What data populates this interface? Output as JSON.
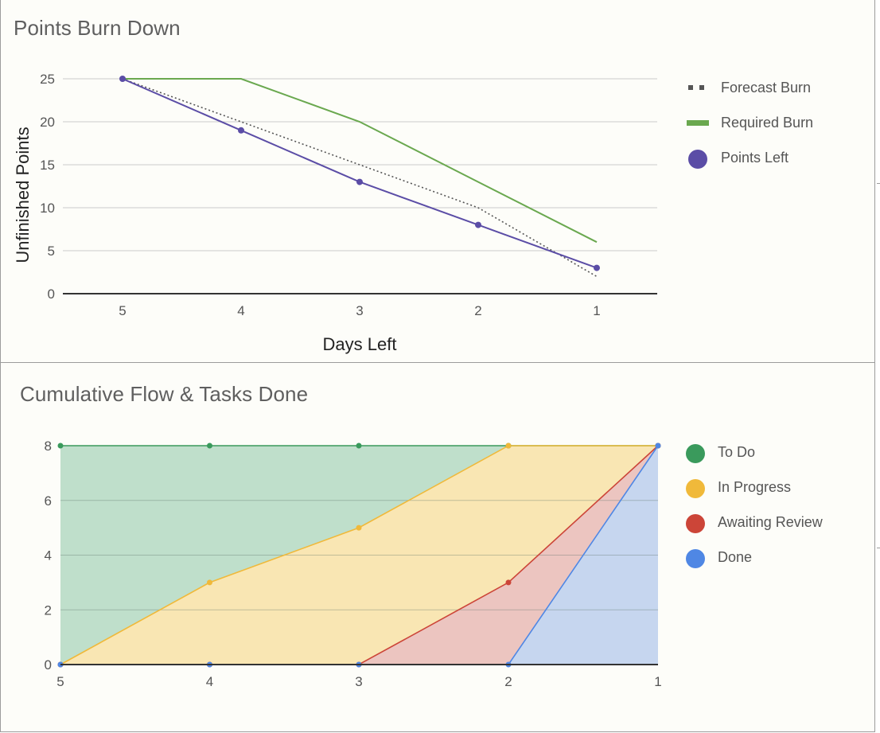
{
  "chart_data": [
    {
      "type": "line",
      "title": "Points Burn Down",
      "xlabel": "Days Left",
      "ylabel": "Unfinished Points",
      "categories": [
        "5",
        "4",
        "3",
        "2",
        "1"
      ],
      "ylim": [
        0,
        25
      ],
      "yticks": [
        "0",
        "5",
        "10",
        "15",
        "20",
        "25"
      ],
      "grid": true,
      "legend_position": "right",
      "series": [
        {
          "name": "Forecast Burn",
          "values": [
            25,
            20,
            15,
            10,
            2
          ],
          "color": "#555555",
          "style": "dotted"
        },
        {
          "name": "Required Burn",
          "values": [
            25,
            25,
            20,
            13,
            6
          ],
          "color": "#6aa84f",
          "style": "solid"
        },
        {
          "name": "Points Left",
          "values": [
            25,
            19,
            13,
            8,
            3
          ],
          "color": "#5b4da6",
          "style": "markers"
        }
      ]
    },
    {
      "type": "area",
      "title": "Cumulative Flow & Tasks Done",
      "xlabel": "",
      "ylabel": "",
      "categories": [
        "5",
        "4",
        "3",
        "2",
        "1"
      ],
      "ylim": [
        0,
        8
      ],
      "yticks": [
        "0",
        "2",
        "4",
        "6",
        "8"
      ],
      "grid": true,
      "legend_position": "right",
      "series": [
        {
          "name": "To Do",
          "values": [
            8,
            8,
            8,
            8,
            8
          ],
          "color": "#3a9a5c",
          "fill": "#bfdfcb"
        },
        {
          "name": "In Progress",
          "values": [
            0,
            3,
            5,
            8,
            8
          ],
          "color": "#f0b93a",
          "fill": "#f9e6b3"
        },
        {
          "name": "Awaiting Review",
          "values": [
            0,
            0,
            0,
            3,
            8
          ],
          "color": "#cc4538",
          "fill": "#ecc5c0"
        },
        {
          "name": "Done",
          "values": [
            0,
            0,
            0,
            0,
            8
          ],
          "color": "#4f87e4",
          "fill": "#c6d6ef"
        }
      ]
    }
  ]
}
